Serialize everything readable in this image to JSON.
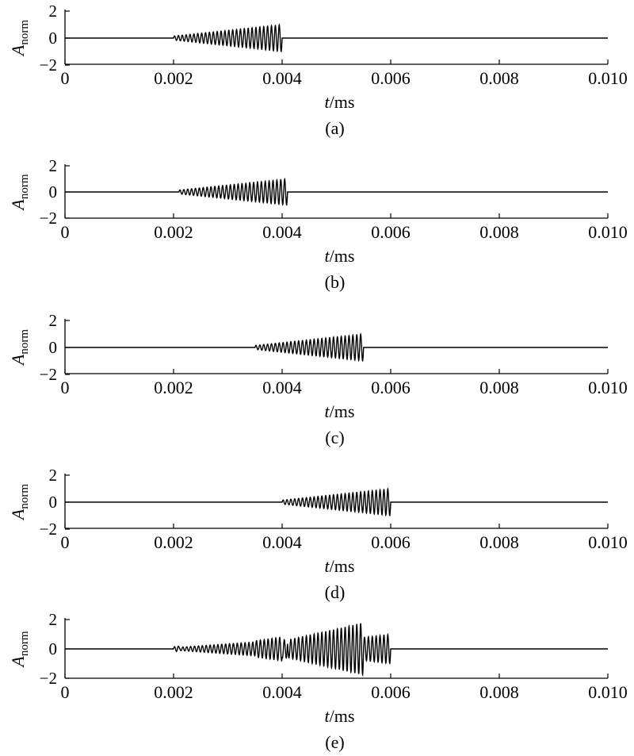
{
  "chart_data": [
    {
      "type": "line",
      "panel_label": "(a)",
      "xlabel_var": "t",
      "xlabel_unit": "/ms",
      "ylabel_main": "A",
      "ylabel_sub": "norm",
      "xlim": [
        0,
        0.01
      ],
      "ylim": [
        -2,
        2
      ],
      "xticks": [
        "0",
        "0.002",
        "0.004",
        "0.006",
        "0.008",
        "0.010"
      ],
      "yticks": [
        "−2",
        "0",
        "2"
      ],
      "series": [
        {
          "kind": "chirp",
          "t_start": 0.002,
          "t_end": 0.004,
          "amp_start": 0.15,
          "amp_end": 1.0,
          "cycles": 28
        }
      ]
    },
    {
      "type": "line",
      "panel_label": "(b)",
      "xlabel_var": "t",
      "xlabel_unit": "/ms",
      "ylabel_main": "A",
      "ylabel_sub": "norm",
      "xlim": [
        0,
        0.01
      ],
      "ylim": [
        -2,
        2
      ],
      "xticks": [
        "0",
        "0.002",
        "0.004",
        "0.006",
        "0.008",
        "0.010"
      ],
      "yticks": [
        "−2",
        "0",
        "2"
      ],
      "series": [
        {
          "kind": "chirp",
          "t_start": 0.0021,
          "t_end": 0.0041,
          "amp_start": 0.15,
          "amp_end": 1.0,
          "cycles": 28
        }
      ]
    },
    {
      "type": "line",
      "panel_label": "(c)",
      "xlabel_var": "t",
      "xlabel_unit": "/ms",
      "ylabel_main": "A",
      "ylabel_sub": "norm",
      "xlim": [
        0,
        0.01
      ],
      "ylim": [
        -2,
        2
      ],
      "xticks": [
        "0",
        "0.002",
        "0.004",
        "0.006",
        "0.008",
        "0.010"
      ],
      "yticks": [
        "−2",
        "0",
        "2"
      ],
      "series": [
        {
          "kind": "chirp",
          "t_start": 0.0035,
          "t_end": 0.0055,
          "amp_start": 0.15,
          "amp_end": 1.0,
          "cycles": 28
        }
      ]
    },
    {
      "type": "line",
      "panel_label": "(d)",
      "xlabel_var": "t",
      "xlabel_unit": "/ms",
      "ylabel_main": "A",
      "ylabel_sub": "norm",
      "xlim": [
        0,
        0.01
      ],
      "ylim": [
        -2,
        2
      ],
      "xticks": [
        "0",
        "0.002",
        "0.004",
        "0.006",
        "0.008",
        "0.010"
      ],
      "yticks": [
        "−2",
        "0",
        "2"
      ],
      "series": [
        {
          "kind": "chirp",
          "t_start": 0.004,
          "t_end": 0.006,
          "amp_start": 0.15,
          "amp_end": 1.0,
          "cycles": 28
        }
      ]
    },
    {
      "type": "line",
      "panel_label": "(e)",
      "xlabel_var": "t",
      "xlabel_unit": "/ms",
      "ylabel_main": "A",
      "ylabel_sub": "norm",
      "xlim": [
        0,
        0.01
      ],
      "ylim": [
        -2.5,
        2.5
      ],
      "xticks": [
        "0",
        "0.002",
        "0.004",
        "0.006",
        "0.008",
        "0.010"
      ],
      "yticks": [
        "−2",
        "0",
        "2"
      ],
      "series": [
        {
          "kind": "sum_of_chirps",
          "components": [
            {
              "t_start": 0.002,
              "t_end": 0.004,
              "amp_start": 0.15,
              "amp_end": 1.0,
              "cycles": 28
            },
            {
              "t_start": 0.0021,
              "t_end": 0.0041,
              "amp_start": 0.15,
              "amp_end": 1.0,
              "cycles": 28
            },
            {
              "t_start": 0.0035,
              "t_end": 0.0055,
              "amp_start": 0.15,
              "amp_end": 1.0,
              "cycles": 28
            },
            {
              "t_start": 0.004,
              "t_end": 0.006,
              "amp_start": 0.15,
              "amp_end": 1.0,
              "cycles": 28
            }
          ]
        }
      ]
    }
  ]
}
